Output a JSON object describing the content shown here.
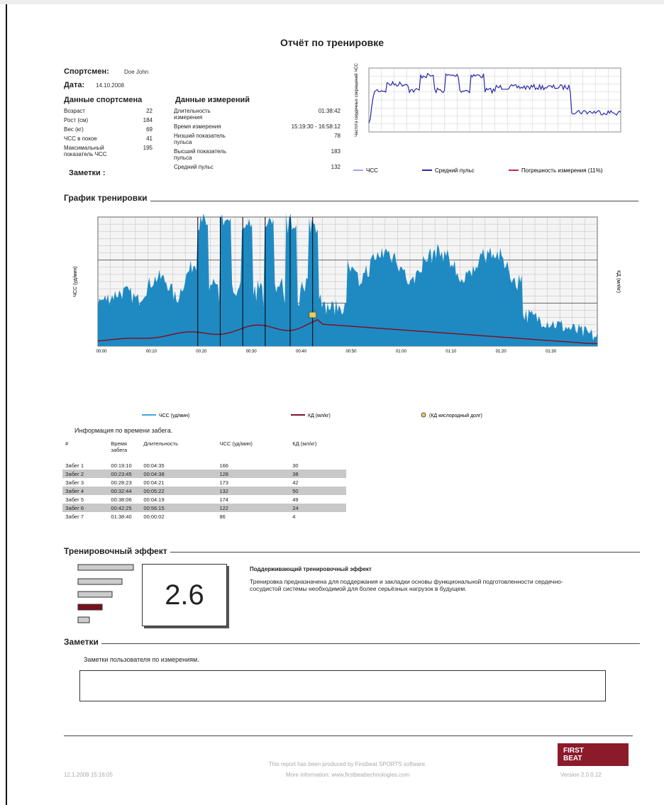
{
  "title": "Отчёт по тренировке",
  "athlete": {
    "label": "Спортсмен:",
    "name": "Doe John",
    "date_label": "Дата:",
    "date": "14.10.2008"
  },
  "athlete_data": {
    "heading": "Данные спортсмена",
    "rows": [
      [
        "Возраст",
        "22"
      ],
      [
        "Рост (см)",
        "184"
      ],
      [
        "Вес (кг)",
        "69"
      ],
      [
        "ЧСС в покое",
        "41"
      ],
      [
        "Максимальный показатель ЧСС",
        "195"
      ]
    ]
  },
  "measurements": {
    "heading": "Данные измерений",
    "rows": [
      [
        "Длительность измерения",
        "01:38:42"
      ],
      [
        "Время измерения",
        "15:19:30 - 16:58:12"
      ],
      [
        "Низший показатель пульса",
        "78"
      ],
      [
        "Высший показатель пульса",
        "183"
      ],
      [
        "Средний пульс",
        "132"
      ]
    ]
  },
  "notes_label": "Заметки :",
  "small_chart": {
    "ylabel": "Частота сердечных сокращений ЧСС",
    "legend": [
      "ЧСС",
      "Средний пульс",
      "Погрешность измерения (11%)"
    ]
  },
  "main_chart": {
    "heading": "График тренировки",
    "ylabel": "ЧСС (уд/мин)",
    "y2label": "КД (мл/кг)",
    "x_labels": [
      "00:00",
      "00:10",
      "00:20",
      "00:30",
      "00:40",
      "00:50",
      "01:00",
      "01:10",
      "01:20",
      "01:30"
    ],
    "legend": [
      "ЧСС (уд/мин)",
      "КД (мл/кг)",
      "(КД кислородный долг)"
    ]
  },
  "laps": {
    "caption": "Информация по времени забега.",
    "headers": [
      "#",
      "Время забега",
      "Длительность",
      "ЧСС (уд/мин)",
      "КД (мл/кг)"
    ],
    "rows": [
      [
        "Забег 1",
        "00:19:10",
        "00:04:35",
        "166",
        "30"
      ],
      [
        "Забег 2",
        "00:23:45",
        "00:04:38",
        "128",
        "38"
      ],
      [
        "Забег 3",
        "00:28:23",
        "00:04:21",
        "173",
        "42"
      ],
      [
        "Забег 4",
        "00:32:44",
        "00:05:22",
        "132",
        "50"
      ],
      [
        "Забег 5",
        "00:38:06",
        "00:04:19",
        "174",
        "49"
      ],
      [
        "Забег 6",
        "00:42:25",
        "00:56:15",
        "122",
        "24"
      ],
      [
        "Забег 7",
        "01:38:40",
        "00:00:02",
        "86",
        "4"
      ]
    ]
  },
  "effect": {
    "heading": "Тренировочный эффект",
    "value": "2.6",
    "title": "Поддерживающий тренировочный эффект",
    "text": "Тренировка предназначена для поддержания и закладки основы функциональной подготовленности сердечно-сосудистой системы необходимой для более серьёзных нагрузок в будущем."
  },
  "notes": {
    "heading": "Заметки",
    "text": "Заметки пользователя по измерениям."
  },
  "footer": {
    "timestamp": "12.1.2009 15:16:05",
    "line1": "This report has been produced by Firstbeat SPORTS software.",
    "line2": "More information: www.firstbeattechnologies.com",
    "version": "Version 2.0.0.12",
    "logo1": "FIRST",
    "logo2": "BEAT"
  }
}
